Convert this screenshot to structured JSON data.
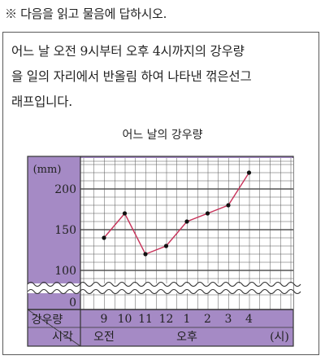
{
  "instruction": "※ 다음을 읽고 물음에 답하시오.",
  "question": {
    "lines": [
      "어느 날 오전 9시부터 오후 4시까지의 강우량",
      "을 일의 자리에서 반올림 하여 나타낸 꺾은선그",
      "래프입니다."
    ]
  },
  "chart_data": {
    "type": "line",
    "title": "어느 날의 강우량",
    "ylabel": "(mm)",
    "y_ticks": [
      "0",
      "100",
      "150",
      "200"
    ],
    "x": [
      "9",
      "10",
      "11",
      "12",
      "1",
      "2",
      "3",
      "4"
    ],
    "series": [
      {
        "values": [
          140,
          170,
          120,
          130,
          160,
          170,
          180,
          220
        ]
      }
    ],
    "ylim": [
      90,
      230
    ],
    "axis_break": true,
    "row_label_top": "강우량",
    "row_label_bottom": "시각",
    "period_labels": [
      "오전",
      "오후"
    ],
    "unit_label": "(시)",
    "colors": {
      "frame": "#a58ac5",
      "grid": "#555555",
      "line": "#c7335a",
      "point": "#111111"
    }
  }
}
